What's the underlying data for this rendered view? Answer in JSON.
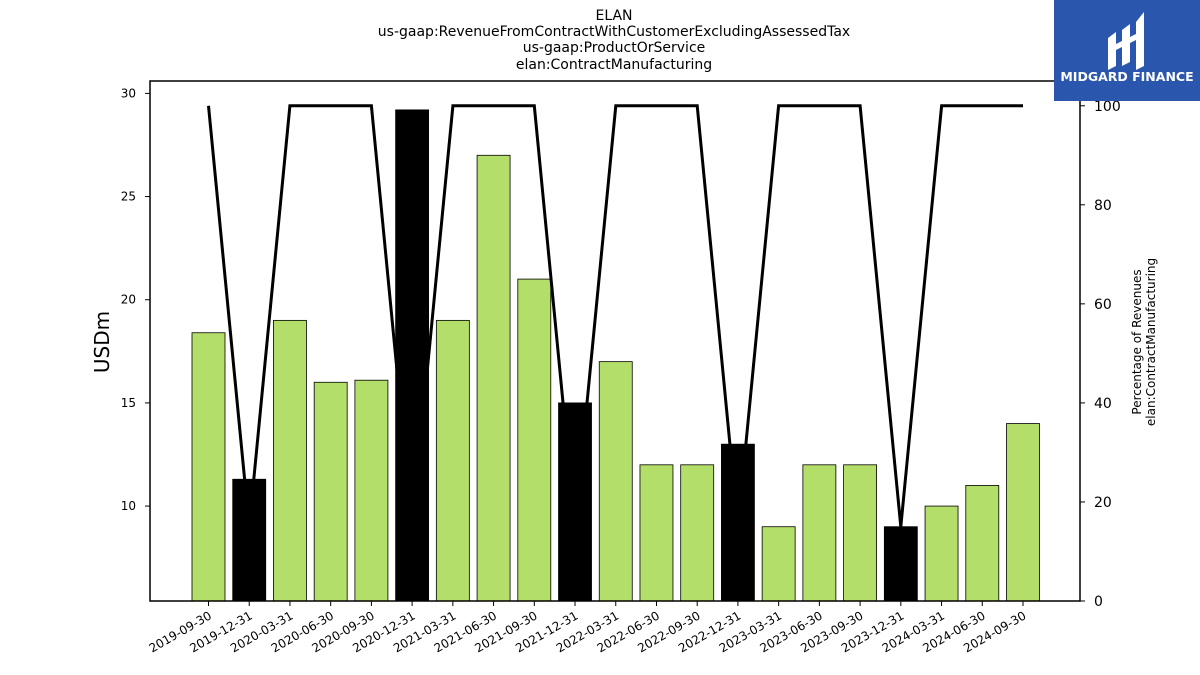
{
  "header": {
    "title_lines": [
      "ELAN",
      "us-gaap:RevenueFromContractWithCustomerExcludingAssessedTax",
      "us-gaap:ProductOrService",
      "elan:ContractManufacturing"
    ]
  },
  "logo": {
    "text": "MIDGARD FINANCE",
    "background": "#2a57ad"
  },
  "chart_data": {
    "type": "bar",
    "categories": [
      "2019-09-30",
      "2019-12-31",
      "2020-03-31",
      "2020-06-30",
      "2020-09-30",
      "2020-12-31",
      "2021-03-31",
      "2021-06-30",
      "2021-09-30",
      "2021-12-31",
      "2022-03-31",
      "2022-06-30",
      "2022-09-30",
      "2022-12-31",
      "2023-03-31",
      "2023-06-30",
      "2023-09-30",
      "2023-12-31",
      "2024-03-31",
      "2024-06-30",
      "2024-09-30"
    ],
    "series": [
      {
        "values": [
          18.4,
          11.3,
          19.0,
          16.0,
          16.1,
          29.2,
          19.0,
          27.0,
          21.0,
          15.0,
          17.0,
          12.0,
          12.0,
          13.0,
          9.0,
          12.0,
          12.0,
          9.0,
          10.0,
          11.0,
          14.0
        ],
        "axis": "left",
        "bar_color": "#b3de69",
        "highlight_color": "#000000",
        "highlighted_categories": [
          "2019-12-31",
          "2020-12-31",
          "2021-12-31",
          "2022-12-31",
          "2023-12-31"
        ]
      },
      {
        "type": "line",
        "axis": "right",
        "color": "#000000",
        "values": [
          100,
          15,
          100,
          100,
          100,
          15,
          100,
          100,
          100,
          15,
          100,
          100,
          100,
          15,
          100,
          100,
          100,
          15,
          100,
          100,
          100
        ]
      }
    ],
    "xlabel": "",
    "ylabel": "USDm",
    "ylabel_right": [
      "Percentage of Revenues",
      "elan:ContractManufacturing"
    ],
    "ylim": [
      5.4,
      30.6
    ],
    "yticks": [
      10,
      15,
      20,
      25,
      30
    ],
    "ylim_right": [
      0,
      105
    ],
    "yticks_right": [
      0,
      20,
      40,
      60,
      80,
      100
    ],
    "grid": false,
    "legend": "none"
  }
}
